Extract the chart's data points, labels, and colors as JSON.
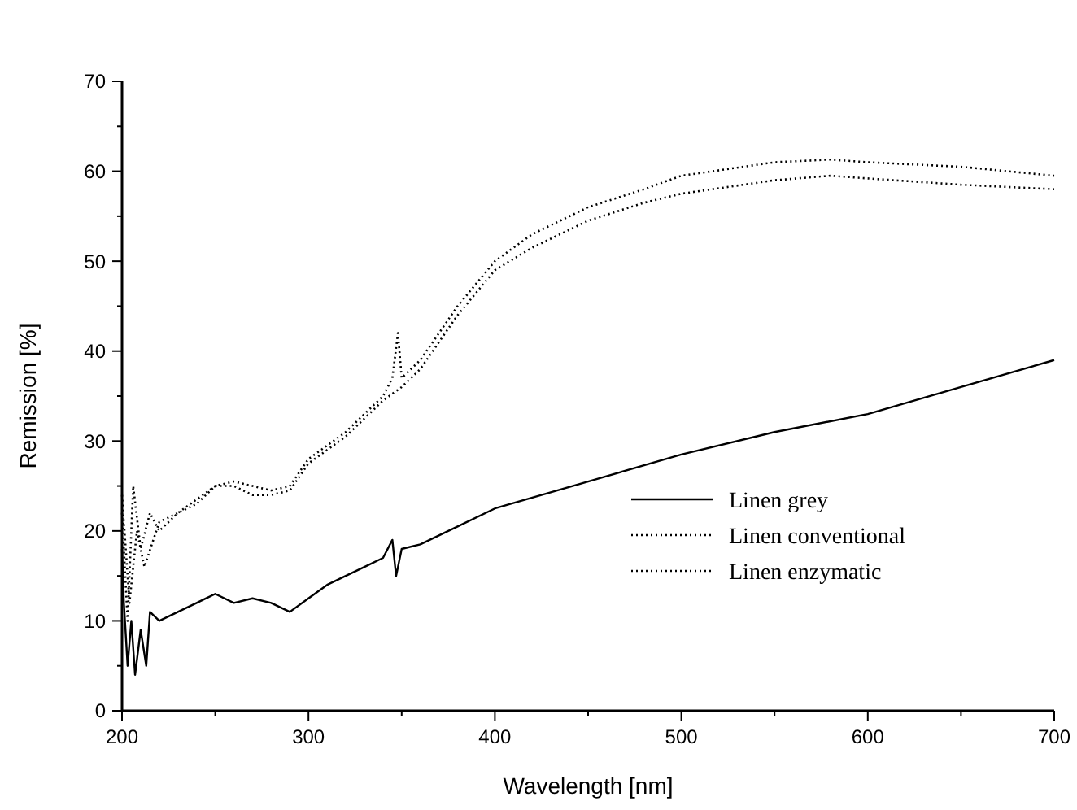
{
  "chart_data": {
    "type": "line",
    "xlabel": "Wavelength [nm]",
    "ylabel": "Remission [%]",
    "xlim": [
      200,
      700
    ],
    "ylim": [
      0,
      70
    ],
    "xticks": [
      200,
      {
        "value": 250,
        "label": null
      },
      300,
      {
        "value": 350,
        "label": null
      },
      400,
      {
        "value": 450,
        "label": null
      },
      500,
      {
        "value": 550,
        "label": null
      },
      600,
      {
        "value": 650,
        "label": null
      },
      700
    ],
    "yticks": [
      0,
      {
        "value": 5,
        "label": null
      },
      10,
      {
        "value": 15,
        "label": null
      },
      20,
      {
        "value": 25,
        "label": null
      },
      30,
      {
        "value": 35,
        "label": null
      },
      40,
      {
        "value": 45,
        "label": null
      },
      50,
      {
        "value": 55,
        "label": null
      },
      60,
      {
        "value": 65,
        "label": null
      },
      70
    ],
    "grid": false,
    "legend": "bottom right",
    "series": [
      {
        "name": "Linen grey",
        "color": "#000000",
        "line_style": "solid",
        "x": [
          200,
          201,
          203,
          205,
          207,
          210,
          213,
          215,
          220,
          230,
          240,
          250,
          260,
          270,
          280,
          290,
          300,
          310,
          320,
          330,
          340,
          345,
          347,
          350,
          360,
          380,
          400,
          450,
          500,
          550,
          600,
          650,
          700
        ],
        "values": [
          18,
          12,
          5,
          10,
          4,
          9,
          5,
          11,
          10,
          11,
          12,
          13,
          12,
          12.5,
          12,
          11,
          12.5,
          14,
          15,
          16,
          17,
          19,
          15,
          18,
          18.5,
          20.5,
          22.5,
          25.5,
          28.5,
          31,
          33,
          36,
          39
        ]
      },
      {
        "name": "Linen conventional",
        "color": "#000000",
        "line_style": "dotted",
        "x": [
          200,
          203,
          206,
          210,
          215,
          220,
          230,
          240,
          250,
          260,
          270,
          280,
          290,
          300,
          310,
          320,
          330,
          340,
          345,
          348,
          350,
          360,
          380,
          400,
          420,
          450,
          480,
          500,
          550,
          580,
          600,
          650,
          700
        ],
        "values": [
          22,
          10,
          25,
          18,
          22,
          20,
          22,
          23.5,
          25,
          25.5,
          25,
          24.5,
          25,
          28,
          29.5,
          31,
          33,
          35,
          37,
          42,
          37,
          39,
          45,
          50,
          53,
          56,
          58,
          59.5,
          61,
          61.3,
          61,
          60.5,
          59.5
        ]
      },
      {
        "name": "Linen enzymatic",
        "color": "#000000",
        "line_style": "dotted",
        "x": [
          200,
          204,
          208,
          212,
          220,
          230,
          240,
          250,
          260,
          270,
          280,
          290,
          300,
          310,
          320,
          330,
          340,
          350,
          360,
          380,
          400,
          420,
          450,
          480,
          500,
          550,
          580,
          600,
          650,
          700
        ],
        "values": [
          24,
          12,
          20,
          16,
          21,
          22,
          23,
          25,
          25,
          24,
          24,
          24.5,
          27.5,
          29,
          30.5,
          32.5,
          34.5,
          36,
          38,
          44,
          49,
          51.5,
          54.5,
          56.5,
          57.5,
          59,
          59.5,
          59.2,
          58.5,
          58
        ]
      }
    ]
  }
}
